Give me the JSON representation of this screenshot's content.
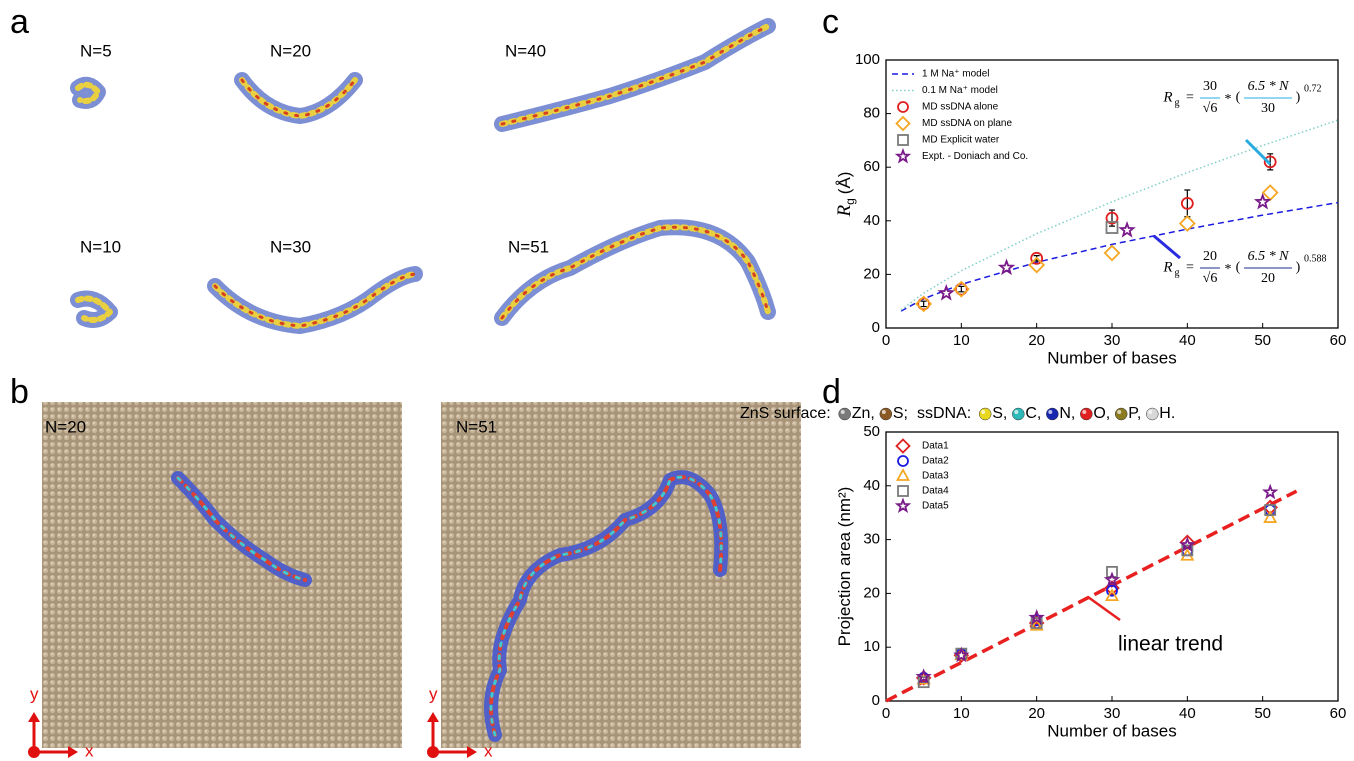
{
  "panel_a": {
    "label": "a",
    "structures": [
      "N=5",
      "N=20",
      "N=40",
      "N=10",
      "N=30",
      "N=51"
    ]
  },
  "panel_b": {
    "label": "b",
    "legend": [
      {
        "label": "ZnS surface:",
        "items": [
          {
            "name": "Zn,",
            "color": "#7a7a7a"
          },
          {
            "name": "S;",
            "color": "#8a5a22"
          }
        ]
      },
      {
        "label": "ssDNA:",
        "items": [
          {
            "name": "S,",
            "color": "#e8d820"
          },
          {
            "name": "C,",
            "color": "#2fb8b8"
          },
          {
            "name": "N,",
            "color": "#1a28b0"
          },
          {
            "name": "O,",
            "color": "#e02020"
          },
          {
            "name": "P,",
            "color": "#8a7a20"
          },
          {
            "name": "H.",
            "color": "#d8d8d8"
          }
        ]
      }
    ],
    "views": [
      {
        "label": "N=20",
        "axes": {
          "x": "x",
          "y": "y"
        }
      },
      {
        "label": "N=51",
        "axes": {
          "x": "x",
          "y": "y"
        }
      }
    ]
  },
  "chart_data": [
    {
      "type": "scatter",
      "panel": "c",
      "xlabel": "Number of bases",
      "ylabel": {
        "main": "R",
        "sub": "g",
        "unit": "(Å)"
      },
      "xlim": [
        0,
        60
      ],
      "xticks": [
        0,
        10,
        20,
        30,
        40,
        50,
        60
      ],
      "ylim": [
        0,
        100
      ],
      "yticks": [
        0,
        20,
        40,
        60,
        80,
        100
      ],
      "legend": "upper left",
      "series": [
        {
          "name": "1 M Na⁺ model",
          "color": "#1a1ae0",
          "line_style": "dashed",
          "x": [
            2,
            5,
            10,
            20,
            30,
            40,
            50,
            60
          ],
          "values": [
            6.3,
            10.9,
            16.3,
            24.5,
            31.2,
            36.9,
            42.1,
            46.8
          ]
        },
        {
          "name": "0.1 M Na⁺ model",
          "color": "#7fd0c8",
          "line_style": "dotted",
          "x": [
            2,
            5,
            10,
            20,
            30,
            40,
            50,
            60
          ],
          "values": [
            6.7,
            13.0,
            21.4,
            35.2,
            47.1,
            58.0,
            68.1,
            77.6
          ]
        },
        {
          "name": "MD ssDNA alone",
          "color": "#e02020",
          "marker": "circle",
          "x": [
            5,
            10,
            20,
            30,
            40,
            51
          ],
          "values": [
            9,
            14.5,
            26,
            41,
            46.5,
            62
          ],
          "errors": [
            1,
            1,
            1,
            3,
            5,
            3
          ]
        },
        {
          "name": "MD ssDNA on plane",
          "color": "#f5a623",
          "marker": "diamond",
          "x": [
            5,
            10,
            20,
            30,
            40,
            51
          ],
          "values": [
            9,
            14.5,
            23.5,
            28,
            39,
            50.5
          ]
        },
        {
          "name": "MD Explicit water",
          "color": "#7a7a7a",
          "marker": "square",
          "x": [
            30
          ],
          "values": [
            37.5
          ]
        },
        {
          "name": "Expt. - Doniach and Co.",
          "color": "#7a1a8a",
          "marker": "star",
          "x": [
            8,
            16,
            32,
            50
          ],
          "values": [
            13,
            22.5,
            36.5,
            47
          ]
        }
      ],
      "annotations": [
        {
          "color": "#29abe2",
          "lhs": "R",
          "sub": "g",
          "eq": "=",
          "coef_num": "30",
          "coef_den": "√6",
          "op": "*",
          "open": "(",
          "frac_num": "6.5 * N",
          "frac_den": "30",
          "close": ")",
          "exp": "0.72"
        },
        {
          "color": "#1a2e8a",
          "lhs": "R",
          "sub": "g",
          "eq": "=",
          "coef_num": "20",
          "coef_den": "√6",
          "op": "*",
          "open": "(",
          "frac_num": "6.5 * N",
          "frac_den": "20",
          "close": ")",
          "exp": "0.588"
        }
      ]
    },
    {
      "type": "scatter",
      "panel": "d",
      "xlabel": "Number of bases",
      "ylabel": {
        "main": "Projection area (nm²)"
      },
      "xlim": [
        0,
        60
      ],
      "xticks": [
        0,
        10,
        20,
        30,
        40,
        50,
        60
      ],
      "ylim": [
        0,
        50
      ],
      "yticks": [
        0,
        10,
        20,
        30,
        40,
        50
      ],
      "legend": "upper left",
      "series": [
        {
          "name": "Data1",
          "color": "#e02020",
          "marker": "diamond",
          "x": [
            5,
            10,
            20,
            30,
            40,
            51
          ],
          "values": [
            4.3,
            8.5,
            14.5,
            21,
            29.5,
            36
          ]
        },
        {
          "name": "Data2",
          "color": "#1a1ae0",
          "marker": "circle",
          "x": [
            5,
            10,
            20,
            30,
            40,
            51
          ],
          "values": [
            4.3,
            8.7,
            15,
            20.5,
            28,
            35.5
          ]
        },
        {
          "name": "Data3",
          "color": "#f5a623",
          "marker": "triangle",
          "x": [
            5,
            10,
            20,
            30,
            40,
            51
          ],
          "values": [
            4,
            8.5,
            14,
            19.5,
            27,
            34
          ]
        },
        {
          "name": "Data4",
          "color": "#7a7a7a",
          "marker": "square",
          "x": [
            5,
            10,
            20,
            30,
            40,
            51
          ],
          "values": [
            3.5,
            8.8,
            14.5,
            24,
            28,
            35.5
          ]
        },
        {
          "name": "Data5",
          "color": "#7a1a8a",
          "marker": "star",
          "x": [
            5,
            10,
            20,
            30,
            40,
            51
          ],
          "values": [
            4.5,
            8.5,
            15.5,
            22.5,
            29,
            38.8
          ]
        }
      ],
      "trend": {
        "label": "linear trend",
        "color": "#e82020",
        "x": [
          0,
          54.5
        ],
        "values": [
          0,
          39
        ]
      }
    }
  ]
}
